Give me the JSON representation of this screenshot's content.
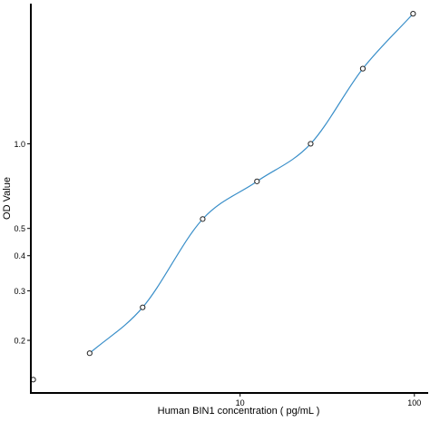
{
  "chart_data": {
    "type": "scatter",
    "title": "",
    "xlabel": "Human BIN1 concentration ( pg/mL )",
    "ylabel": "OD Value",
    "x_scale": "log",
    "y_scale": "log",
    "xlim": [
      0.63,
      120
    ],
    "ylim": [
      0.13,
      3.15
    ],
    "x_ticks": [
      10,
      100
    ],
    "x_tick_labels": [
      "10",
      "100"
    ],
    "y_ticks": [
      0.2,
      0.3,
      0.4,
      0.5,
      1.0
    ],
    "y_tick_labels": [
      "0.2",
      "0.3",
      "0.4",
      "0.5",
      "1.0"
    ],
    "grid": false,
    "legend": "none",
    "series": [
      {
        "points": [
          {
            "x": 0.65,
            "y": 0.145
          },
          {
            "x": 1.37,
            "y": 0.18
          },
          {
            "x": 2.76,
            "y": 0.262
          },
          {
            "x": 6.1,
            "y": 0.54
          },
          {
            "x": 12.5,
            "y": 0.735
          },
          {
            "x": 25.4,
            "y": 1.0
          },
          {
            "x": 50.6,
            "y": 1.85
          },
          {
            "x": 98.3,
            "y": 2.9
          }
        ],
        "color": "#3a8fc9",
        "marker": "open-circle"
      }
    ]
  }
}
